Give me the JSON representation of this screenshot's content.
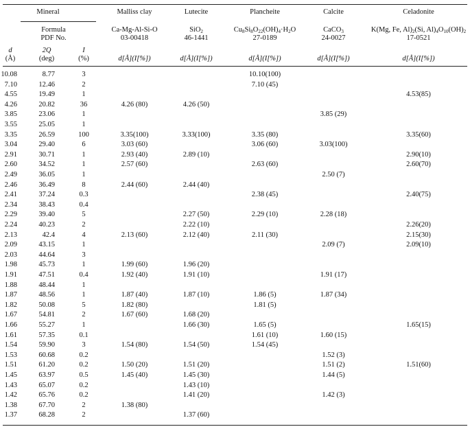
{
  "header": {
    "groups": [
      "Mineral",
      "Malliss clay",
      "Lutecite",
      "Plancheite",
      "Calcite",
      "Celadonite"
    ],
    "mineral_formula": "Formula",
    "mineral_pdf": "PDF No.",
    "d_label": "d",
    "d_unit": "(Å)",
    "twoq_label": "2Q",
    "twoq_unit": "(deg)",
    "i_label": "I",
    "i_unit": "(%)",
    "formulas": [
      "Ca-Mg-Al-Si-O",
      "SiO<sub>2</sub>",
      "Cu<sub>8</sub>Si<sub>8</sub>O<sub>22</sub>(OH)<sub>4</sub>·H<sub>2</sub>O",
      "CaCO<sub>3</sub>",
      "K(Mg, Fe, Al)<sub>2</sub>(Si, Al)<sub>4</sub>O<sub>10</sub>(OH)<sub>2</sub>"
    ],
    "pdf_numbers": [
      "03-00418",
      "46-1441",
      "27-0189",
      "24-0027",
      "17-0521"
    ],
    "col_unit": "d[Å](I[%])"
  },
  "rows": [
    [
      "10.08",
      "8.77",
      "3",
      "",
      "",
      "10.10(100)",
      "",
      ""
    ],
    [
      "7.10",
      "12.46",
      "2",
      "",
      "",
      "7.10 (45)",
      "",
      ""
    ],
    [
      "4.55",
      "19.49",
      "1",
      "",
      "",
      "",
      "",
      "4.53(85)"
    ],
    [
      "4.26",
      "20.82",
      "36",
      "4.26 (80)",
      "4.26 (50)",
      "",
      "",
      ""
    ],
    [
      "3.85",
      "23.06",
      "1",
      "",
      "",
      "",
      "3.85 (29)",
      ""
    ],
    [
      "3.55",
      "25.05",
      "1",
      "",
      "",
      "",
      "",
      ""
    ],
    [
      "3.35",
      "26.59",
      "100",
      "3.35(100)",
      "3.33(100)",
      "3.35 (80)",
      "",
      "3.35(60)"
    ],
    [
      "3.04",
      "29.40",
      "6",
      "3.03 (60)",
      "",
      "3.06 (60)",
      "3.03(100)",
      ""
    ],
    [
      "2.91",
      "30.71",
      "1",
      "2.93 (40)",
      "2.89 (10)",
      "",
      "",
      "2.90(10)"
    ],
    [
      "2.60",
      "34.52",
      "1",
      "2.57 (60)",
      "",
      "2.63 (60)",
      "",
      "2.60(70)"
    ],
    [
      "2.49",
      "36.05",
      "1",
      "",
      "",
      "",
      "2.50 (7)",
      ""
    ],
    [
      "2.46",
      "36.49",
      "8",
      "2.44 (60)",
      "2.44 (40)",
      "",
      "",
      ""
    ],
    [
      "2.41",
      "37.24",
      "0.3",
      "",
      "",
      "2.38 (45)",
      "",
      "2.40(75)"
    ],
    [
      "2.34",
      "38.43",
      "0.4",
      "",
      "",
      "",
      "",
      ""
    ],
    [
      "2.29",
      "39.40",
      "5",
      "",
      "2.27 (50)",
      "2.29 (10)",
      "2.28 (18)",
      ""
    ],
    [
      "2.24",
      "40.23",
      "2",
      "",
      "2.22 (10)",
      "",
      "",
      "2.26(20)"
    ],
    [
      "2.13",
      "42.4",
      "4",
      "2.13 (60)",
      "2.12 (40)",
      "2.11 (30)",
      "",
      "2.15(30)"
    ],
    [
      "2.09",
      "43.15",
      "1",
      "",
      "",
      "",
      "2.09 (7)",
      "2.09(10)"
    ],
    [
      "2.03",
      "44.64",
      "3",
      "",
      "",
      "",
      "",
      ""
    ],
    [
      "1.98",
      "45.73",
      "1",
      "1.99 (60)",
      "1.96 (20)",
      "",
      "",
      ""
    ],
    [
      "1.91",
      "47.51",
      "0.4",
      "1.92 (40)",
      "1.91 (10)",
      "",
      "1.91 (17)",
      ""
    ],
    [
      "1.88",
      "48.44",
      "1",
      "",
      "",
      "",
      "",
      ""
    ],
    [
      "1.87",
      "48.56",
      "1",
      "1.87 (40)",
      "1.87 (10)",
      "1.86 (5)",
      "1.87 (34)",
      ""
    ],
    [
      "1.82",
      "50.08",
      "5",
      "1.82 (80)",
      "",
      "1.81 (5)",
      "",
      ""
    ],
    [
      "1.67",
      "54.81",
      "2",
      "1.67 (60)",
      "1.68 (20)",
      "",
      "",
      ""
    ],
    [
      "1.66",
      "55.27",
      "1",
      "",
      "1.66 (30)",
      "1.65 (5)",
      "",
      "1.65(15)"
    ],
    [
      "1.61",
      "57.35",
      "0.1",
      "",
      "",
      "1.61 (10)",
      "1.60 (15)",
      ""
    ],
    [
      "1.54",
      "59.90",
      "3",
      "1.54 (80)",
      "1.54 (50)",
      "1.54 (45)",
      "",
      ""
    ],
    [
      "1.53",
      "60.68",
      "0.2",
      "",
      "",
      "",
      "1.52 (3)",
      ""
    ],
    [
      "1.51",
      "61.20",
      "0.2",
      "1.50 (20)",
      "1.51 (20)",
      "",
      "1.51 (2)",
      "1.51(60)"
    ],
    [
      "1.45",
      "63.97",
      "0.5",
      "1.45 (40)",
      "1.45 (30)",
      "",
      "1.44 (5)",
      ""
    ],
    [
      "1.43",
      "65.07",
      "0.2",
      "",
      "1.43 (10)",
      "",
      "",
      ""
    ],
    [
      "1.42",
      "65.76",
      "0.2",
      "",
      "1.41 (20)",
      "",
      "1.42 (3)",
      ""
    ],
    [
      "1.38",
      "67.70",
      "2",
      "1.38 (80)",
      "",
      "",
      "",
      ""
    ],
    [
      "1.37",
      "68.28",
      "2",
      "",
      "1.37 (60)",
      "",
      "",
      ""
    ]
  ]
}
